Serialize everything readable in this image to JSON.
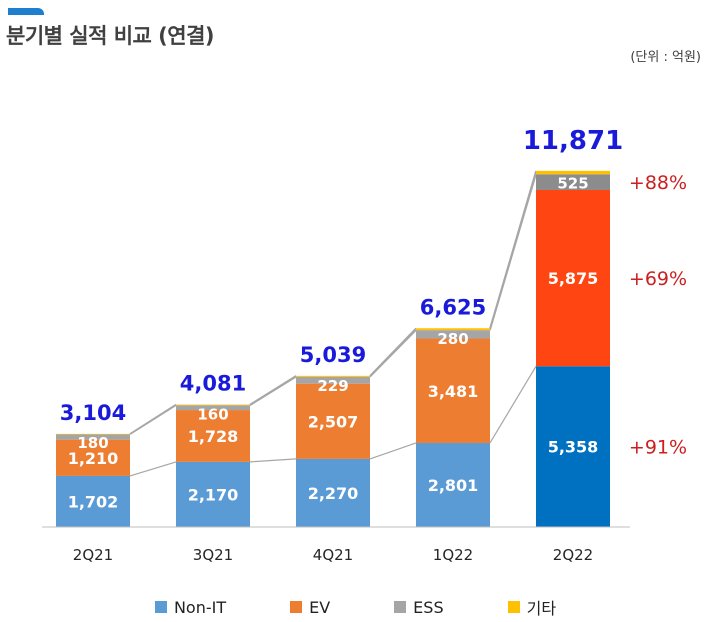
{
  "title": "분기별 실적 비교 (연결)",
  "unit": "(단위 : 억원)",
  "chart_data": {
    "type": "bar",
    "stacked": true,
    "categories": [
      "2Q21",
      "3Q21",
      "4Q21",
      "1Q22",
      "2Q22"
    ],
    "series": [
      {
        "name": "Non-IT",
        "values": [
          1702,
          2170,
          2270,
          2801,
          5358
        ],
        "labels": [
          "1,702",
          "2,170",
          "2,270",
          "2,801",
          "5,358"
        ],
        "color": "#5b9bd5",
        "highlight_color": "#0070c0"
      },
      {
        "name": "EV",
        "values": [
          1210,
          1728,
          2507,
          3481,
          5875
        ],
        "labels": [
          "1,210",
          "1,728",
          "2,507",
          "3,481",
          "5,875"
        ],
        "color": "#ed7d31",
        "highlight_color": "#ff4612"
      },
      {
        "name": "ESS",
        "values": [
          180,
          160,
          229,
          280,
          525
        ],
        "labels": [
          "180",
          "160",
          "229",
          "280",
          "525"
        ],
        "color": "#a5a5a5",
        "highlight_color": "#8c8c8c"
      },
      {
        "name": "기타",
        "values": [
          12,
          23,
          33,
          63,
          113
        ],
        "labels": [
          "",
          "",
          "",
          "",
          ""
        ],
        "color": "#ffc000",
        "highlight_color": "#ffc000"
      }
    ],
    "totals": [
      3104,
      4081,
      5039,
      6625,
      11871
    ],
    "total_labels": [
      "3,104",
      "4,081",
      "5,039",
      "6,625",
      "11,871"
    ],
    "growth_labels": [
      {
        "series": "ESS",
        "text": "+88%"
      },
      {
        "series": "EV",
        "text": "+69%"
      },
      {
        "series": "Non-IT",
        "text": "+91%"
      }
    ],
    "ylim": [
      0,
      12500
    ],
    "colors": {
      "total": "#1a1adb",
      "growth": "#cc1f1f",
      "connector": "#a6a6a6"
    }
  }
}
